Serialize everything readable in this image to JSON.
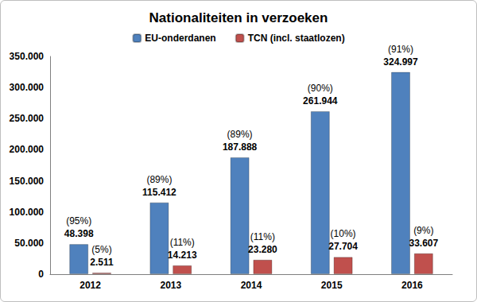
{
  "chart_data": {
    "type": "bar",
    "title": "Nationaliteiten in verzoeken",
    "categories": [
      "2012",
      "2013",
      "2014",
      "2015",
      "2016"
    ],
    "series": [
      {
        "name": "EU-onderdanen",
        "color": "#4f81bd",
        "values": [
          48398,
          115412,
          187888,
          261944,
          324997
        ],
        "value_labels": [
          "48.398",
          "115.412",
          "187.888",
          "261.944",
          "324.997"
        ],
        "share_labels": [
          "(95%)",
          "(89%)",
          "(89%)",
          "(90%)",
          "(91%)"
        ]
      },
      {
        "name": "TCN (incl. staatlozen)",
        "color": "#c0504d",
        "values": [
          2511,
          14213,
          23280,
          27704,
          33607
        ],
        "value_labels": [
          "2.511",
          "14.213",
          "23.280",
          "27.704",
          "33.607"
        ],
        "share_labels": [
          "(5%)",
          "(11%)",
          "(11%)",
          "(10%)",
          "(9%)"
        ]
      }
    ],
    "ylim": [
      0,
      350000
    ],
    "yticks": [
      0,
      {
        "value": 50000,
        "label": "50.000"
      },
      {
        "value": 100000,
        "label": "100.000"
      },
      {
        "value": 150000,
        "label": "150.000"
      },
      {
        "value": 200000,
        "label": "200.000"
      },
      {
        "value": 250000,
        "label": "250.000"
      },
      {
        "value": 300000,
        "label": "300.000"
      },
      {
        "value": 350000,
        "label": "350.000"
      }
    ],
    "grid": false,
    "legend": "top",
    "data_labels": true
  }
}
